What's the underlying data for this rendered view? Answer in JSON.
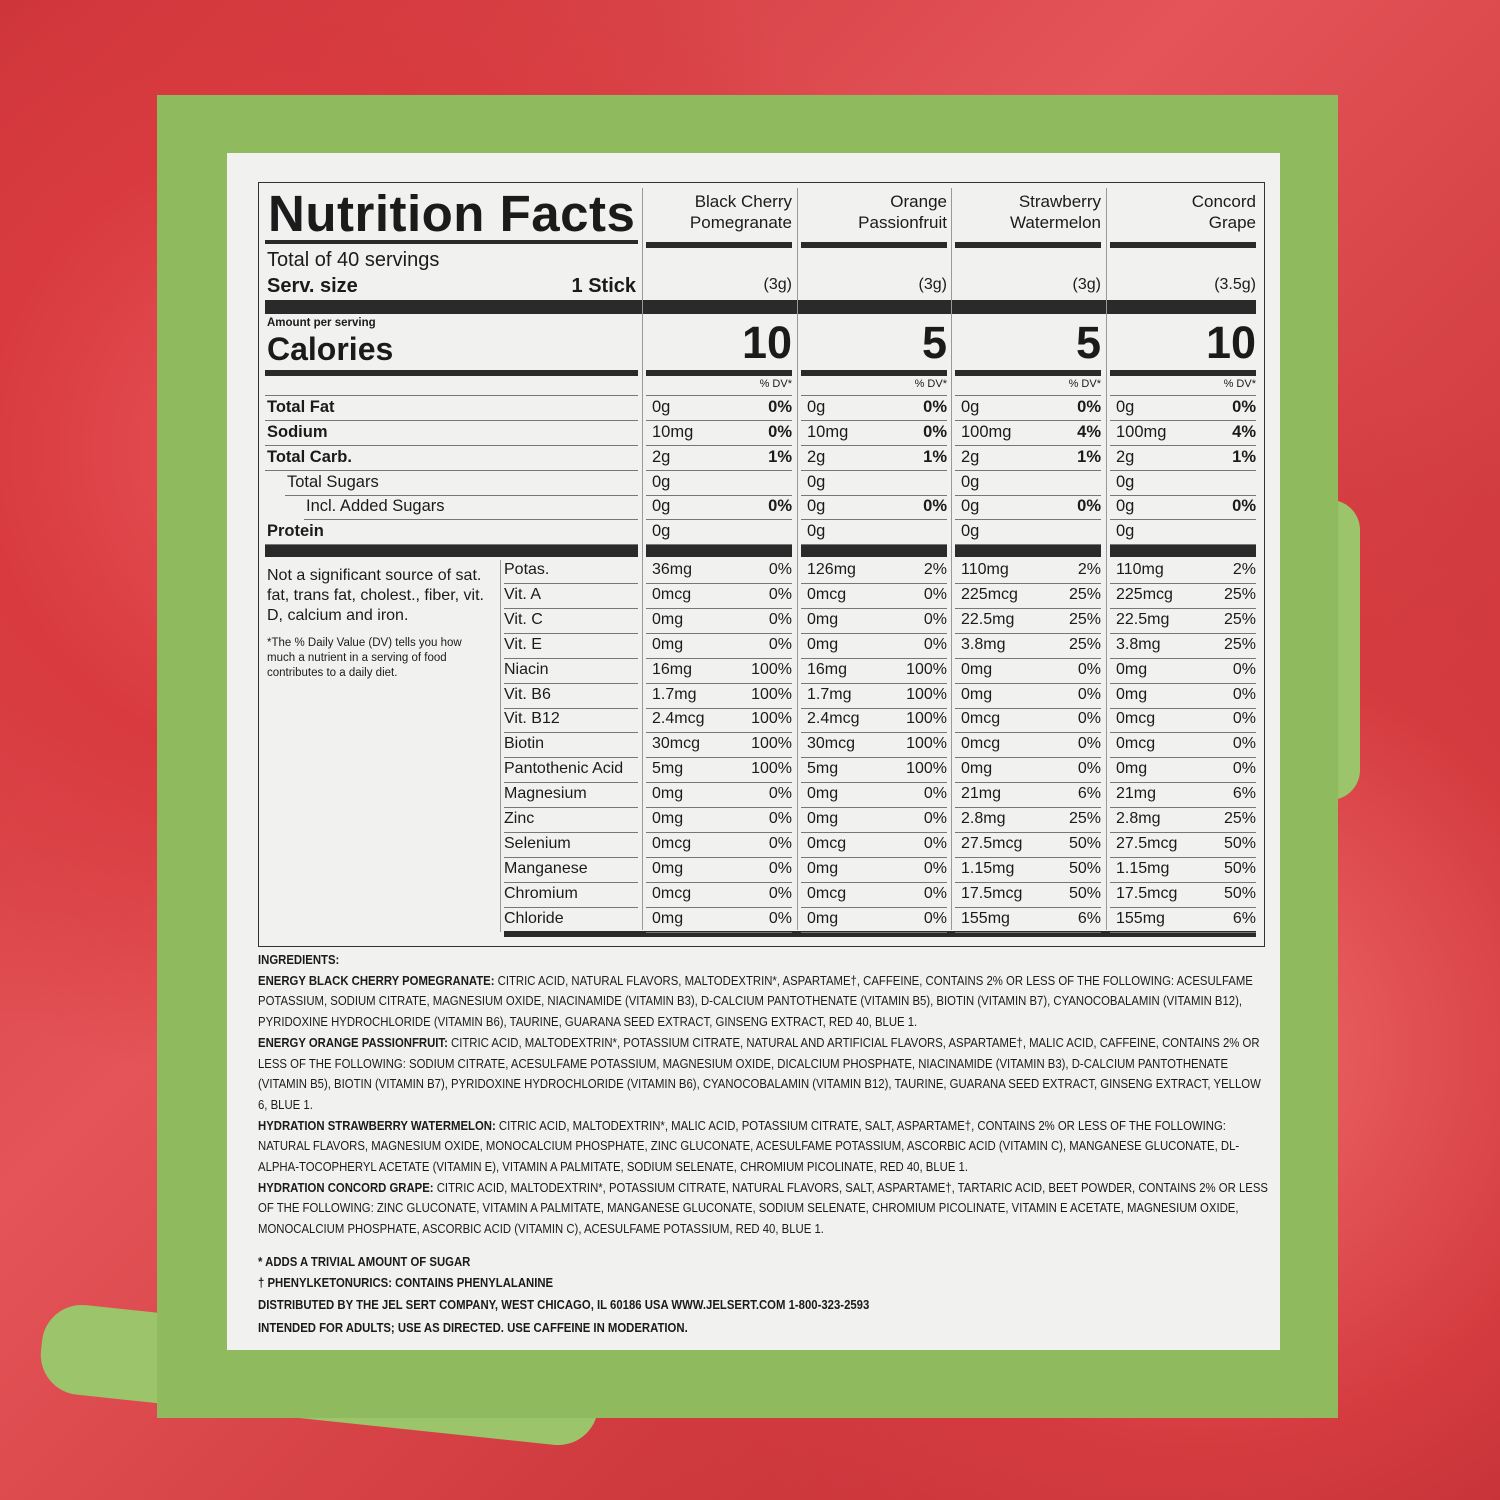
{
  "header": {
    "title": "Nutrition Facts",
    "servings": "Total of 40 servings",
    "serv_size_label": "Serv. size",
    "serv_size_value": "1 Stick",
    "amount_per_serving": "Amount per serving",
    "calories_label": "Calories",
    "dv_label": "% DV*"
  },
  "macro_labels": [
    "Total Fat",
    "Sodium",
    "Total Carb.",
    "Total Sugars",
    "Incl. Added Sugars",
    "Protein"
  ],
  "micro_labels": [
    "Potas.",
    "Vit. A",
    "Vit. C",
    "Vit. E",
    "Niacin",
    "Vit. B6",
    "Vit. B12",
    "Biotin",
    "Pantothenic Acid",
    "Magnesium",
    "Zinc",
    "Selenium",
    "Manganese",
    "Chromium",
    "Chloride"
  ],
  "notes": {
    "not_significant": "Not a significant source of sat. fat, trans fat, cholest., fiber, vit. D, calcium and iron.",
    "dv_footnote": "*The % Daily Value (DV) tells you how much a nutrient in a serving of food contributes to a daily diet."
  },
  "products": [
    {
      "name": "Black Cherry Pomegranate",
      "serving": "(3g)",
      "calories": "10",
      "macros": [
        [
          "0g",
          "0%"
        ],
        [
          "10mg",
          "0%"
        ],
        [
          "2g",
          "1%"
        ],
        [
          "0g",
          ""
        ],
        [
          "0g",
          "0%"
        ],
        [
          "0g",
          ""
        ]
      ],
      "micros": [
        [
          "36mg",
          "0%"
        ],
        [
          "0mcg",
          "0%"
        ],
        [
          "0mg",
          "0%"
        ],
        [
          "0mg",
          "0%"
        ],
        [
          "16mg",
          "100%"
        ],
        [
          "1.7mg",
          "100%"
        ],
        [
          "2.4mcg",
          "100%"
        ],
        [
          "30mcg",
          "100%"
        ],
        [
          "5mg",
          "100%"
        ],
        [
          "0mg",
          "0%"
        ],
        [
          "0mg",
          "0%"
        ],
        [
          "0mcg",
          "0%"
        ],
        [
          "0mg",
          "0%"
        ],
        [
          "0mcg",
          "0%"
        ],
        [
          "0mg",
          "0%"
        ]
      ]
    },
    {
      "name": "Orange Passionfruit",
      "serving": "(3g)",
      "calories": "5",
      "macros": [
        [
          "0g",
          "0%"
        ],
        [
          "10mg",
          "0%"
        ],
        [
          "2g",
          "1%"
        ],
        [
          "0g",
          ""
        ],
        [
          "0g",
          "0%"
        ],
        [
          "0g",
          ""
        ]
      ],
      "micros": [
        [
          "126mg",
          "2%"
        ],
        [
          "0mcg",
          "0%"
        ],
        [
          "0mg",
          "0%"
        ],
        [
          "0mg",
          "0%"
        ],
        [
          "16mg",
          "100%"
        ],
        [
          "1.7mg",
          "100%"
        ],
        [
          "2.4mcg",
          "100%"
        ],
        [
          "30mcg",
          "100%"
        ],
        [
          "5mg",
          "100%"
        ],
        [
          "0mg",
          "0%"
        ],
        [
          "0mg",
          "0%"
        ],
        [
          "0mcg",
          "0%"
        ],
        [
          "0mg",
          "0%"
        ],
        [
          "0mcg",
          "0%"
        ],
        [
          "0mg",
          "0%"
        ]
      ]
    },
    {
      "name": "Strawberry Watermelon",
      "serving": "(3g)",
      "calories": "5",
      "macros": [
        [
          "0g",
          "0%"
        ],
        [
          "100mg",
          "4%"
        ],
        [
          "2g",
          "1%"
        ],
        [
          "0g",
          ""
        ],
        [
          "0g",
          "0%"
        ],
        [
          "0g",
          ""
        ]
      ],
      "micros": [
        [
          "110mg",
          "2%"
        ],
        [
          "225mcg",
          "25%"
        ],
        [
          "22.5mg",
          "25%"
        ],
        [
          "3.8mg",
          "25%"
        ],
        [
          "0mg",
          "0%"
        ],
        [
          "0mg",
          "0%"
        ],
        [
          "0mcg",
          "0%"
        ],
        [
          "0mcg",
          "0%"
        ],
        [
          "0mg",
          "0%"
        ],
        [
          "21mg",
          "6%"
        ],
        [
          "2.8mg",
          "25%"
        ],
        [
          "27.5mcg",
          "50%"
        ],
        [
          "1.15mg",
          "50%"
        ],
        [
          "17.5mcg",
          "50%"
        ],
        [
          "155mg",
          "6%"
        ]
      ]
    },
    {
      "name": "Concord Grape",
      "serving": "(3.5g)",
      "calories": "10",
      "macros": [
        [
          "0g",
          "0%"
        ],
        [
          "100mg",
          "4%"
        ],
        [
          "2g",
          "1%"
        ],
        [
          "0g",
          ""
        ],
        [
          "0g",
          "0%"
        ],
        [
          "0g",
          ""
        ]
      ],
      "micros": [
        [
          "110mg",
          "2%"
        ],
        [
          "225mcg",
          "25%"
        ],
        [
          "22.5mg",
          "25%"
        ],
        [
          "3.8mg",
          "25%"
        ],
        [
          "0mg",
          "0%"
        ],
        [
          "0mg",
          "0%"
        ],
        [
          "0mcg",
          "0%"
        ],
        [
          "0mcg",
          "0%"
        ],
        [
          "0mg",
          "0%"
        ],
        [
          "21mg",
          "6%"
        ],
        [
          "2.8mg",
          "25%"
        ],
        [
          "27.5mcg",
          "50%"
        ],
        [
          "1.15mg",
          "50%"
        ],
        [
          "17.5mcg",
          "50%"
        ],
        [
          "155mg",
          "6%"
        ]
      ]
    }
  ],
  "ingredients": {
    "title": "INGREDIENTS:",
    "items": [
      {
        "name": "ENERGY BLACK CHERRY POMEGRANATE:",
        "text": " CITRIC ACID, NATURAL FLAVORS, MALTODEXTRIN*, ASPARTAME†, CAFFEINE, CONTAINS 2% OR LESS OF THE FOLLOWING: ACESULFAME POTASSIUM, SODIUM CITRATE, MAGNESIUM OXIDE, NIACINAMIDE (VITAMIN B3), D-CALCIUM PANTOTHENATE (VITAMIN B5), BIOTIN (VITAMIN B7), CYANOCOBALAMIN (VITAMIN B12), PYRIDOXINE HYDROCHLORIDE (VITAMIN B6), TAURINE, GUARANA SEED EXTRACT, GINSENG EXTRACT, RED 40, BLUE 1."
      },
      {
        "name": "ENERGY ORANGE PASSIONFRUIT:",
        "text": " CITRIC ACID, MALTODEXTRIN*, POTASSIUM CITRATE, NATURAL AND ARTIFICIAL FLAVORS, ASPARTAME†, MALIC ACID, CAFFEINE, CONTAINS 2% OR LESS OF THE FOLLOWING: SODIUM CITRATE, ACESULFAME POTASSIUM, MAGNESIUM OXIDE, DICALCIUM PHOSPHATE, NIACINAMIDE (VITAMIN B3), D-CALCIUM PANTOTHENATE (VITAMIN B5), BIOTIN (VITAMIN B7), PYRIDOXINE HYDROCHLORIDE (VITAMIN B6), CYANOCOBALAMIN (VITAMIN B12), TAURINE, GUARANA SEED EXTRACT, GINSENG EXTRACT, YELLOW 6, BLUE 1."
      },
      {
        "name": "HYDRATION STRAWBERRY WATERMELON:",
        "text": " CITRIC ACID, MALTODEXTRIN*, MALIC ACID, POTASSIUM CITRATE, SALT, ASPARTAME†, CONTAINS 2% OR LESS OF THE FOLLOWING: NATURAL FLAVORS, MAGNESIUM OXIDE, MONOCALCIUM PHOSPHATE, ZINC GLUCONATE, ACESULFAME POTASSIUM, ASCORBIC ACID (VITAMIN C), MANGANESE GLUCONATE, DL-ALPHA-TOCOPHERYL ACETATE (VITAMIN E), VITAMIN A PALMITATE, SODIUM SELENATE, CHROMIUM PICOLINATE, RED 40, BLUE 1."
      },
      {
        "name": "HYDRATION CONCORD GRAPE:",
        "text": " CITRIC ACID, MALTODEXTRIN*, POTASSIUM CITRATE, NATURAL FLAVORS, SALT, ASPARTAME†, TARTARIC ACID, BEET POWDER, CONTAINS 2% OR LESS OF THE FOLLOWING: ZINC GLUCONATE, VITAMIN A PALMITATE, MANGANESE GLUCONATE, SODIUM SELENATE, CHROMIUM PICOLINATE, VITAMIN E ACETATE, MAGNESIUM OXIDE, MONOCALCIUM PHOSPHATE, ASCORBIC ACID (VITAMIN C), ACESULFAME POTASSIUM, RED 40, BLUE 1."
      }
    ],
    "footnotes": [
      "* ADDS A TRIVIAL AMOUNT OF SUGAR",
      "† PHENYLKETONURICS: CONTAINS PHENYLALANINE",
      "DISTRIBUTED BY THE JEL SERT COMPANY, WEST CHICAGO, IL 60186 USA WWW.JELSERT.COM 1-800-323-2593",
      "INTENDED FOR ADULTS; USE AS DIRECTED. USE CAFFEINE IN MODERATION."
    ]
  },
  "colors": {
    "frame": "#8fbb5e",
    "panel": "#f1f1f0",
    "background": "#d83a3f"
  }
}
